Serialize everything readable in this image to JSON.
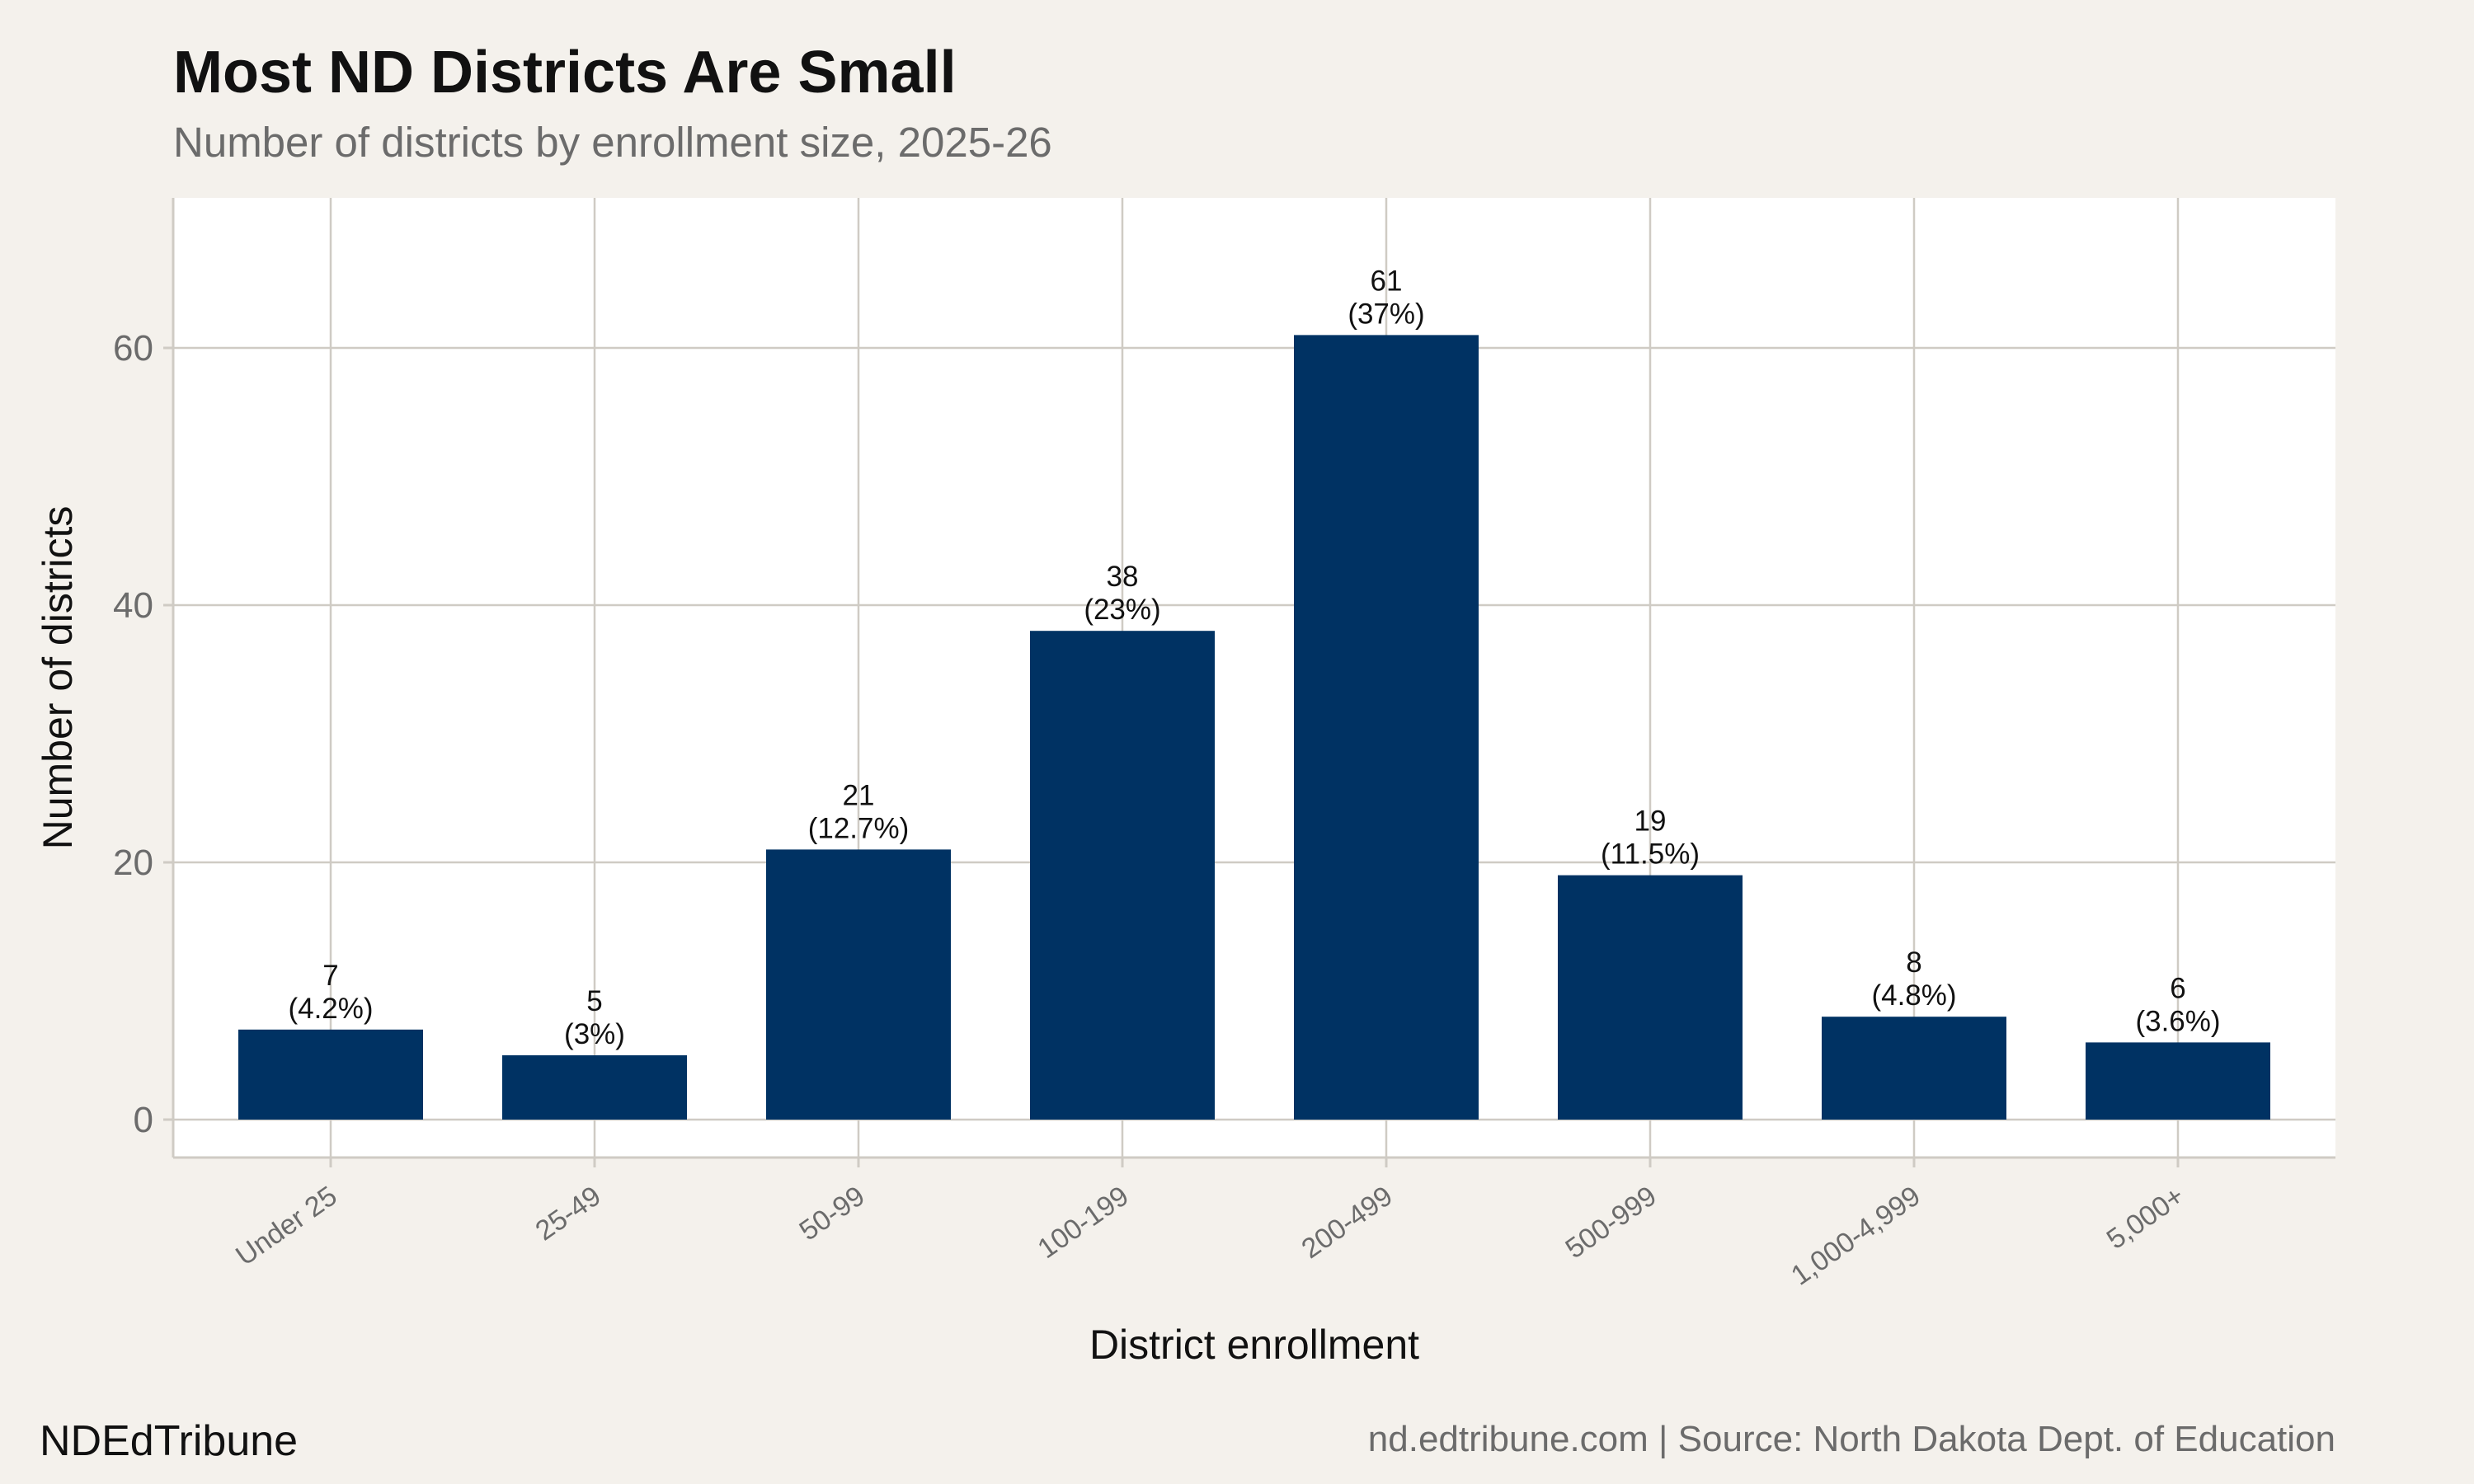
{
  "colors": {
    "background": "#f4f1ec",
    "panel": "#ffffff",
    "bar": "#003263",
    "grid": "#cfcbc4"
  },
  "brand": "NDEdTribune",
  "caption": "nd.edtribune.com | Source: North Dakota Dept. of Education",
  "chart_data": {
    "type": "bar",
    "title": "Most ND Districts Are Small",
    "subtitle": "Number of districts by enrollment size, 2025-26",
    "xlabel": "District enrollment",
    "ylabel": "Number of districts",
    "categories": [
      "Under 25",
      "25-49",
      "50-99",
      "100-199",
      "200-499",
      "500-999",
      "1,000-4,999",
      "5,000+"
    ],
    "values": [
      7,
      5,
      21,
      38,
      61,
      19,
      8,
      6
    ],
    "value_labels": [
      "7",
      "5",
      "21",
      "38",
      "61",
      "19",
      "8",
      "6"
    ],
    "percent_labels": [
      "(4.2%)",
      "(3%)",
      "(12.7%)",
      "(23%)",
      "(37%)",
      "(11.5%)",
      "(4.8%)",
      "(3.6%)"
    ],
    "ylim": [
      -3,
      72
    ],
    "yticks": [
      0,
      20,
      40,
      60
    ],
    "grid": true,
    "legend": "none"
  }
}
